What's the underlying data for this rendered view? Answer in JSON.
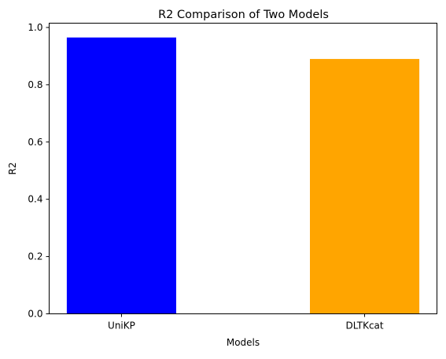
{
  "chart_data": {
    "type": "bar",
    "title": "R2 Comparison of Two Models",
    "xlabel": "Models",
    "ylabel": "R2",
    "categories": [
      "UniKP",
      "DLTKcat"
    ],
    "values": [
      0.965,
      0.89
    ],
    "colors": [
      "#0000ff",
      "#ffa500"
    ],
    "ylim": [
      0,
      1.015
    ],
    "yticks": [
      0.0,
      0.2,
      0.4,
      0.6,
      0.8,
      1.0
    ],
    "ytick_labels": [
      "0.0",
      "0.2",
      "0.4",
      "0.6",
      "0.8",
      "1.0"
    ],
    "grid": false,
    "legend": "none"
  }
}
